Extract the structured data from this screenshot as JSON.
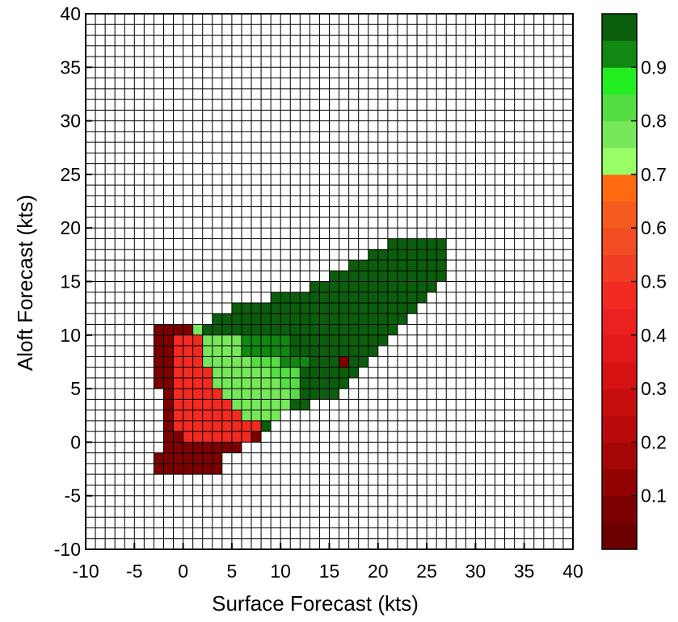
{
  "chart_data": {
    "type": "heatmap",
    "title": "",
    "xlabel": "Surface Forecast (kts)",
    "ylabel": "Aloft Forecast (kts)",
    "xlim": [
      -10,
      40
    ],
    "ylim": [
      -10,
      40
    ],
    "cell_size": 1,
    "grid": true,
    "x_ticks": [
      "-10",
      "-5",
      "0",
      "5",
      "10",
      "15",
      "20",
      "25",
      "30",
      "35",
      "40"
    ],
    "y_ticks": [
      "-10",
      "-5",
      "0",
      "5",
      "10",
      "15",
      "20",
      "25",
      "30",
      "35",
      "40"
    ],
    "colorbar": {
      "range": [
        0,
        1
      ],
      "ticks": [
        "0.1",
        "0.2",
        "0.3",
        "0.4",
        "0.5",
        "0.6",
        "0.7",
        "0.8",
        "0.9"
      ],
      "levels": [
        {
          "from": 0.0,
          "to": 0.05,
          "color": "#6b0000"
        },
        {
          "from": 0.05,
          "to": 0.1,
          "color": "#7d0000"
        },
        {
          "from": 0.1,
          "to": 0.15,
          "color": "#920303"
        },
        {
          "from": 0.15,
          "to": 0.2,
          "color": "#a40606"
        },
        {
          "from": 0.2,
          "to": 0.25,
          "color": "#b80a0a"
        },
        {
          "from": 0.25,
          "to": 0.3,
          "color": "#c80d0d"
        },
        {
          "from": 0.3,
          "to": 0.35,
          "color": "#d61212"
        },
        {
          "from": 0.35,
          "to": 0.4,
          "color": "#e31818"
        },
        {
          "from": 0.4,
          "to": 0.45,
          "color": "#ec2020"
        },
        {
          "from": 0.45,
          "to": 0.5,
          "color": "#f22a22"
        },
        {
          "from": 0.5,
          "to": 0.55,
          "color": "#f23c24"
        },
        {
          "from": 0.55,
          "to": 0.6,
          "color": "#f24c22"
        },
        {
          "from": 0.6,
          "to": 0.65,
          "color": "#f65a1c"
        },
        {
          "from": 0.65,
          "to": 0.7,
          "color": "#ff6a10"
        },
        {
          "from": 0.7,
          "to": 0.75,
          "color": "#99ff66"
        },
        {
          "from": 0.75,
          "to": 0.8,
          "color": "#77e85a"
        },
        {
          "from": 0.8,
          "to": 0.85,
          "color": "#55dd44"
        },
        {
          "from": 0.85,
          "to": 0.9,
          "color": "#22ee22"
        },
        {
          "from": 0.9,
          "to": 0.95,
          "color": "#118811"
        },
        {
          "from": 0.95,
          "to": 1.0,
          "color": "#0b5e0b"
        }
      ]
    },
    "rows": [
      {
        "y": 18,
        "segments": [
          {
            "x": [
              21,
              26
            ],
            "value": 0.98
          }
        ]
      },
      {
        "y": 17,
        "segments": [
          {
            "x": [
              19,
              26
            ],
            "value": 0.98
          }
        ]
      },
      {
        "y": 16,
        "segments": [
          {
            "x": [
              17,
              26
            ],
            "value": 0.98
          }
        ]
      },
      {
        "y": 15,
        "segments": [
          {
            "x": [
              15,
              26
            ],
            "value": 0.98
          }
        ]
      },
      {
        "y": 14,
        "segments": [
          {
            "x": [
              13,
              25
            ],
            "value": 0.98
          }
        ]
      },
      {
        "y": 13,
        "segments": [
          {
            "x": [
              9,
              24
            ],
            "value": 0.98
          }
        ]
      },
      {
        "y": 12,
        "segments": [
          {
            "x": [
              5,
              23
            ],
            "value": 0.98
          }
        ]
      },
      {
        "y": 11,
        "segments": [
          {
            "x": [
              3,
              22
            ],
            "value": 0.98
          }
        ]
      },
      {
        "y": 10,
        "segments": [
          {
            "x": [
              -3,
              0
            ],
            "value": 0.08
          },
          {
            "x": [
              1,
              1
            ],
            "value": 0.78
          },
          {
            "x": [
              2,
              21
            ],
            "value": 0.98
          }
        ]
      },
      {
        "y": 9,
        "segments": [
          {
            "x": [
              -3,
              -2
            ],
            "value": 0.08
          },
          {
            "x": [
              -1,
              1
            ],
            "value": 0.45
          },
          {
            "x": [
              2,
              5
            ],
            "value": 0.75
          },
          {
            "x": [
              6,
              10
            ],
            "value": 0.92
          },
          {
            "x": [
              11,
              20
            ],
            "value": 0.97
          }
        ]
      },
      {
        "y": 8,
        "segments": [
          {
            "x": [
              -3,
              -2
            ],
            "value": 0.08
          },
          {
            "x": [
              -1,
              1
            ],
            "value": 0.45
          },
          {
            "x": [
              2,
              5
            ],
            "value": 0.75
          },
          {
            "x": [
              6,
              10
            ],
            "value": 0.92
          },
          {
            "x": [
              11,
              19
            ],
            "value": 0.97
          }
        ]
      },
      {
        "y": 7,
        "segments": [
          {
            "x": [
              -3,
              -2
            ],
            "value": 0.08
          },
          {
            "x": [
              -1,
              1
            ],
            "value": 0.45
          },
          {
            "x": [
              2,
              6
            ],
            "value": 0.75
          },
          {
            "x": [
              7,
              9
            ],
            "value": 0.82
          },
          {
            "x": [
              10,
              12
            ],
            "value": 0.92
          },
          {
            "x": [
              13,
              15
            ],
            "value": 0.97
          },
          {
            "x": [
              16,
              16
            ],
            "value": 0.05
          },
          {
            "x": [
              17,
              18
            ],
            "value": 0.97
          }
        ]
      },
      {
        "y": 6,
        "segments": [
          {
            "x": [
              -3,
              -2
            ],
            "value": 0.08
          },
          {
            "x": [
              -1,
              2
            ],
            "value": 0.45
          },
          {
            "x": [
              3,
              8
            ],
            "value": 0.75
          },
          {
            "x": [
              9,
              11
            ],
            "value": 0.82
          },
          {
            "x": [
              12,
              17
            ],
            "value": 0.97
          }
        ]
      },
      {
        "y": 5,
        "segments": [
          {
            "x": [
              -3,
              -2
            ],
            "value": 0.08
          },
          {
            "x": [
              -1,
              2
            ],
            "value": 0.45
          },
          {
            "x": [
              3,
              9
            ],
            "value": 0.75
          },
          {
            "x": [
              10,
              11
            ],
            "value": 0.82
          },
          {
            "x": [
              12,
              16
            ],
            "value": 0.97
          }
        ]
      },
      {
        "y": 4,
        "segments": [
          {
            "x": [
              -2,
              -2
            ],
            "value": 0.08
          },
          {
            "x": [
              -1,
              3
            ],
            "value": 0.45
          },
          {
            "x": [
              4,
              10
            ],
            "value": 0.75
          },
          {
            "x": [
              11,
              11
            ],
            "value": 0.82
          },
          {
            "x": [
              12,
              15
            ],
            "value": 0.97
          }
        ]
      },
      {
        "y": 3,
        "segments": [
          {
            "x": [
              -2,
              -2
            ],
            "value": 0.08
          },
          {
            "x": [
              -1,
              4
            ],
            "value": 0.45
          },
          {
            "x": [
              5,
              10
            ],
            "value": 0.75
          },
          {
            "x": [
              11,
              12
            ],
            "value": 0.97
          }
        ]
      },
      {
        "y": 2,
        "segments": [
          {
            "x": [
              -2,
              -2
            ],
            "value": 0.08
          },
          {
            "x": [
              -1,
              5
            ],
            "value": 0.45
          },
          {
            "x": [
              6,
              9
            ],
            "value": 0.75
          }
        ]
      },
      {
        "y": 1,
        "segments": [
          {
            "x": [
              -2,
              -2
            ],
            "value": 0.08
          },
          {
            "x": [
              -1,
              7
            ],
            "value": 0.45
          },
          {
            "x": [
              8,
              8
            ],
            "value": 0.97
          }
        ]
      },
      {
        "y": 0,
        "segments": [
          {
            "x": [
              -2,
              -1
            ],
            "value": 0.08
          },
          {
            "x": [
              0,
              6
            ],
            "value": 0.45
          },
          {
            "x": [
              7,
              7
            ],
            "value": 0.08
          }
        ]
      },
      {
        "y": -1,
        "segments": [
          {
            "x": [
              -2,
              5
            ],
            "value": 0.08
          }
        ]
      },
      {
        "y": -2,
        "segments": [
          {
            "x": [
              -3,
              3
            ],
            "value": 0.08
          }
        ]
      },
      {
        "y": -3,
        "segments": [
          {
            "x": [
              -3,
              3
            ],
            "value": 0.08
          }
        ]
      }
    ]
  }
}
